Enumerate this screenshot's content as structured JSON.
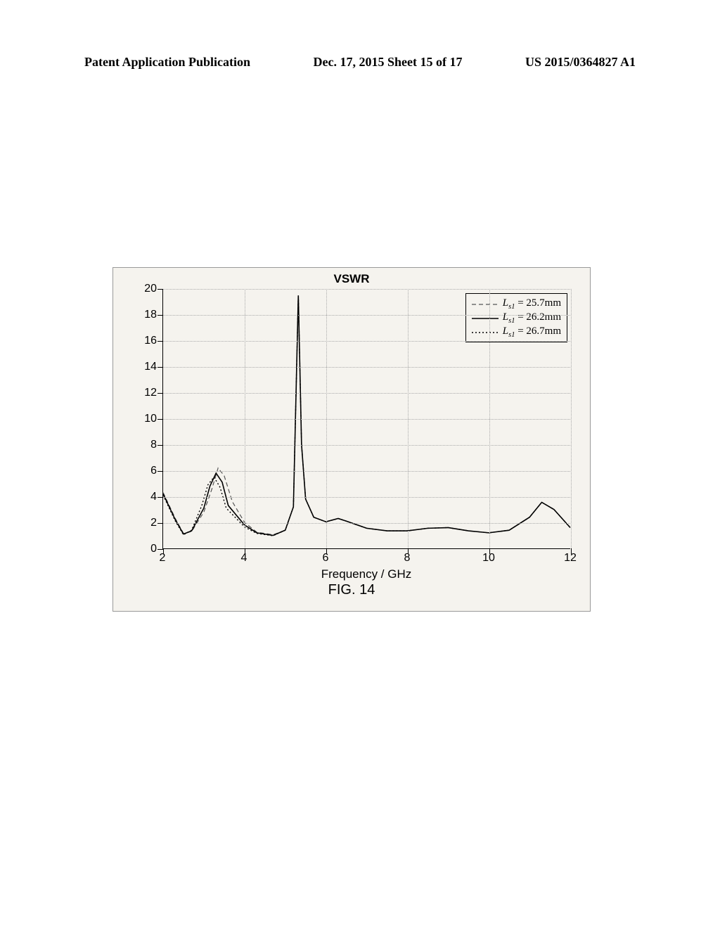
{
  "header": {
    "left": "Patent Application Publication",
    "center": "Dec. 17, 2015  Sheet 15 of 17",
    "right": "US 2015/0364827 A1"
  },
  "chart": {
    "type": "line",
    "title": "VSWR",
    "xlabel": "Frequency / GHz",
    "xlim": [
      2,
      12
    ],
    "ylim": [
      0,
      20
    ],
    "xtick_step": 2,
    "ytick_step": 2,
    "xticks": [
      2,
      4,
      6,
      8,
      10,
      12
    ],
    "yticks": [
      0,
      2,
      4,
      6,
      8,
      10,
      12,
      14,
      16,
      18,
      20
    ],
    "background_color": "#f5f3ee",
    "grid_color": "#aaaaaa",
    "grid_style": "dotted",
    "title_fontsize": 17,
    "label_fontsize": 17,
    "tick_fontsize": 16,
    "series": [
      {
        "label_param": "L_s1",
        "label_value": "25.7mm",
        "style": "dashed",
        "color": "#555555",
        "line_width": 1.2,
        "x": [
          2.0,
          2.3,
          2.5,
          2.7,
          3.0,
          3.2,
          3.35,
          3.5,
          3.7,
          4.0,
          4.3,
          4.7,
          5.0,
          5.2,
          5.32,
          5.4,
          5.5,
          5.7,
          6.0,
          6.3,
          6.5,
          7.0,
          7.5,
          8.0,
          8.5,
          9.0,
          9.5,
          10.0,
          10.5,
          11.0,
          11.3,
          11.6,
          12.0
        ],
        "y": [
          4.3,
          2.3,
          1.15,
          1.3,
          2.8,
          4.6,
          6.2,
          5.6,
          3.6,
          2.0,
          1.25,
          1.05,
          1.4,
          3.2,
          19.5,
          8.0,
          3.8,
          2.4,
          2.05,
          2.3,
          2.1,
          1.55,
          1.35,
          1.35,
          1.55,
          1.6,
          1.35,
          1.2,
          1.4,
          2.4,
          3.55,
          3.0,
          1.6
        ]
      },
      {
        "label_param": "L_s1",
        "label_value": "26.2mm",
        "style": "solid",
        "color": "#000000",
        "line_width": 1.6,
        "x": [
          2.0,
          2.3,
          2.5,
          2.7,
          3.0,
          3.15,
          3.3,
          3.45,
          3.6,
          4.0,
          4.3,
          4.7,
          5.0,
          5.2,
          5.32,
          5.4,
          5.5,
          5.7,
          6.0,
          6.3,
          6.5,
          7.0,
          7.5,
          8.0,
          8.5,
          9.0,
          9.5,
          10.0,
          10.5,
          11.0,
          11.3,
          11.6,
          12.0
        ],
        "y": [
          4.2,
          2.2,
          1.1,
          1.35,
          3.1,
          4.8,
          5.8,
          5.1,
          3.3,
          1.8,
          1.2,
          1.0,
          1.4,
          3.2,
          19.5,
          8.0,
          3.8,
          2.4,
          2.05,
          2.3,
          2.1,
          1.55,
          1.35,
          1.35,
          1.55,
          1.6,
          1.35,
          1.2,
          1.4,
          2.4,
          3.55,
          3.0,
          1.6
        ]
      },
      {
        "label_param": "L_s1",
        "label_value": "26.7mm",
        "style": "dotted",
        "color": "#000000",
        "line_width": 1.4,
        "x": [
          2.0,
          2.3,
          2.5,
          2.7,
          2.95,
          3.1,
          3.25,
          3.4,
          3.55,
          4.0,
          4.3,
          4.7,
          5.0,
          5.2,
          5.32,
          5.4,
          5.5,
          5.7,
          6.0,
          6.3,
          6.5,
          7.0,
          7.5,
          8.0,
          8.5,
          9.0,
          9.5,
          10.0,
          10.5,
          11.0,
          11.3,
          11.6,
          12.0
        ],
        "y": [
          4.1,
          2.1,
          1.05,
          1.4,
          3.3,
          4.9,
          5.5,
          4.7,
          3.1,
          1.65,
          1.15,
          0.98,
          1.4,
          3.2,
          19.5,
          8.0,
          3.8,
          2.4,
          2.05,
          2.3,
          2.1,
          1.55,
          1.35,
          1.35,
          1.55,
          1.6,
          1.35,
          1.2,
          1.4,
          2.4,
          3.55,
          3.0,
          1.6
        ]
      }
    ],
    "legend": {
      "position": "top-right",
      "border_color": "#000000",
      "background_color": "#f5f3ee"
    }
  },
  "caption": "FIG. 14"
}
